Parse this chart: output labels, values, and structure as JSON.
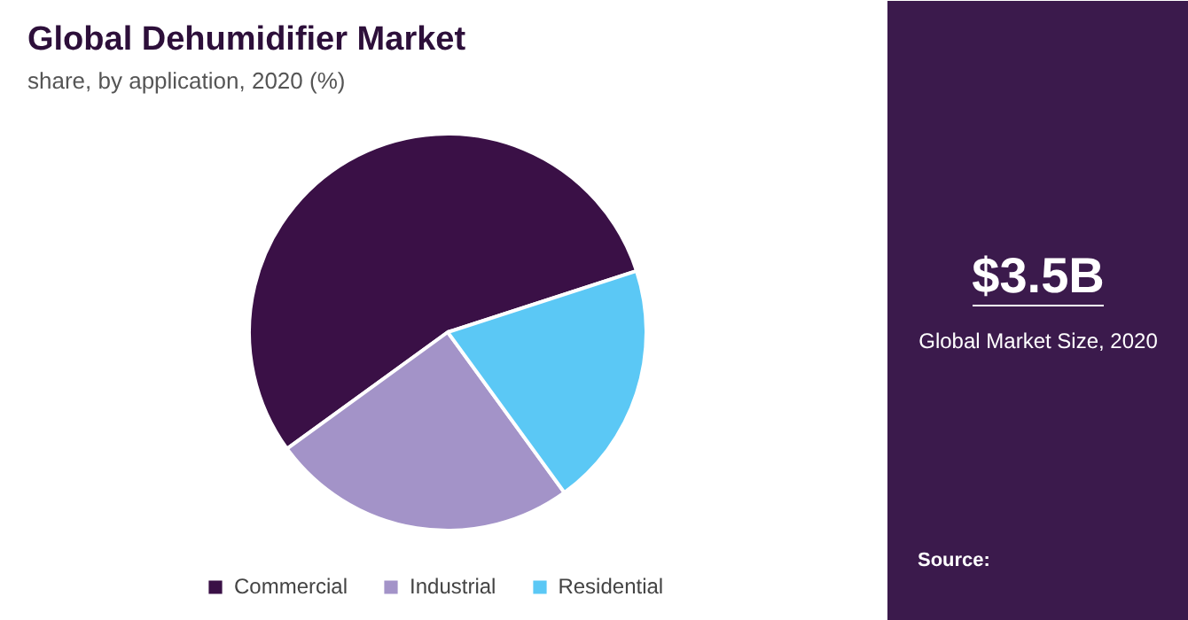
{
  "chart_data": {
    "type": "pie",
    "title": "Global Dehumidifier Market",
    "subtitle": "share, by application, 2020 (%)",
    "categories": [
      "Commercial",
      "Industrial",
      "Residential"
    ],
    "values": [
      55,
      25,
      20
    ],
    "colors": [
      "#3a1046",
      "#a393c8",
      "#5bc8f5"
    ],
    "legend": "bottom",
    "annotations": [
      "$3.5B",
      "Global Market Size, 2020",
      "Source:"
    ]
  }
}
